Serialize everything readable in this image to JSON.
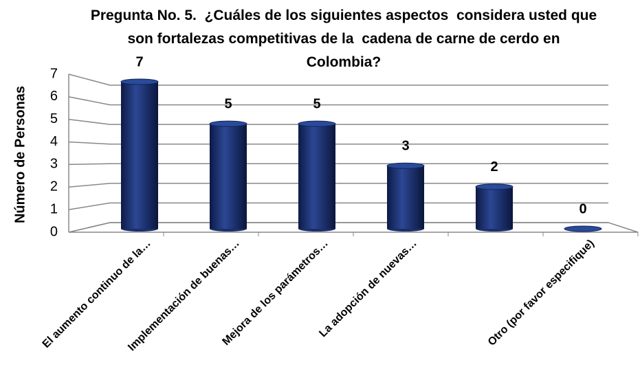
{
  "chart_data": {
    "type": "bar",
    "title": "Pregunta No. 5.  ¿Cuáles de los siguientes aspectos  considera usted que son fortalezas competitivas de la  cadena de carne de cerdo en Colombia?",
    "y_label": "Número de Personas",
    "categories": [
      "El aumento continuo de la…",
      "Implementación de buenas…",
      "Mejora de los parámetros…",
      "La adopción de nuevas…",
      "",
      "Otro (por favor especifique)"
    ],
    "values": [
      7,
      5,
      5,
      3,
      2,
      0
    ],
    "color": "#1a2f6b",
    "ylim": [
      0,
      7
    ],
    "yticks": [
      0,
      1,
      2,
      3,
      4,
      5,
      6,
      7
    ],
    "grid": true
  }
}
